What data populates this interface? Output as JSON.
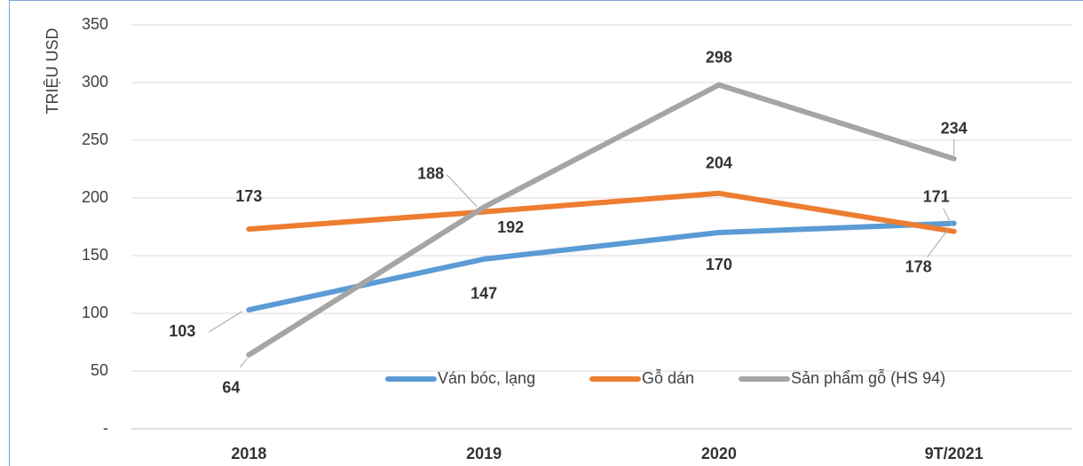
{
  "chart_data": {
    "type": "line",
    "y_label": "TRIỆU USD",
    "categories": [
      "2018",
      "2019",
      "2020",
      "9T/2021"
    ],
    "series": [
      {
        "name": "Ván bóc, lạng",
        "color": "#5b9bd5",
        "values": [
          103,
          147,
          170,
          178
        ]
      },
      {
        "name": "Gỗ dán",
        "color": "#ed7d31",
        "values": [
          173,
          188,
          204,
          171
        ]
      },
      {
        "name": "Sản phẩm gỗ (HS 94)",
        "color": "#a5a5a5",
        "values": [
          64,
          192,
          298,
          234
        ]
      }
    ],
    "ylim": [
      0,
      350
    ],
    "yticks": [
      {
        "value": 0,
        "label": "-"
      },
      50,
      100,
      150,
      200,
      250,
      300,
      350
    ],
    "grid": true,
    "legend": "bottom-center"
  }
}
